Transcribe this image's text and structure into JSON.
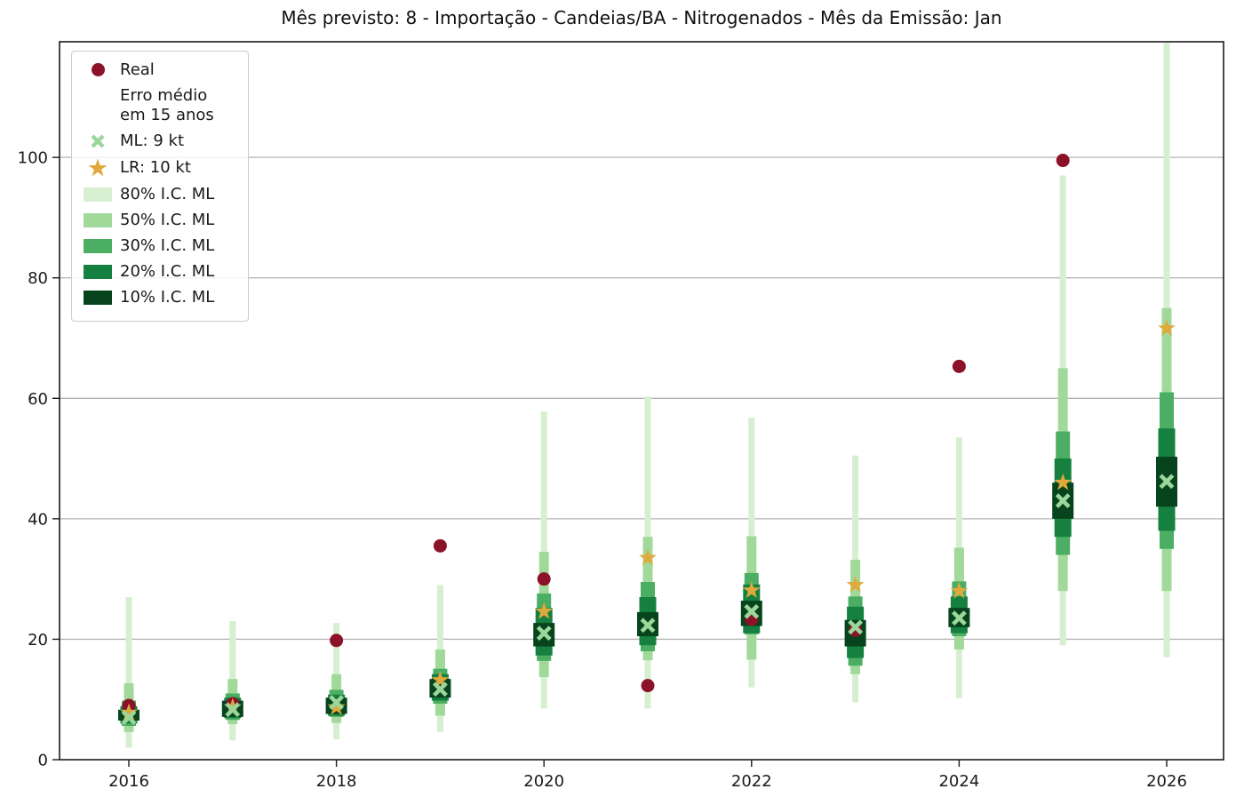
{
  "title": "Mês previsto: 8 - Importação - Candeias/BA - Nitrogenados - Mês da Emissão: Jan",
  "colors": {
    "real": "#8b1228",
    "ml_x": "#9bd69b",
    "lr_star": "#dfa93c",
    "ci80": "#d7efd1",
    "ci50": "#a1d99b",
    "ci30": "#4bae62",
    "ci20": "#15803f",
    "ci10": "#07441e",
    "grid": "#b3b3b3",
    "spine": "#1a1a1a",
    "text": "#1a1a1a"
  },
  "legend": {
    "items": [
      {
        "id": "real",
        "handle": "dot",
        "lines": [
          "Real"
        ]
      },
      {
        "id": "erro-medio",
        "handle": "none",
        "lines": [
          "Erro médio",
          "em 15 anos"
        ]
      },
      {
        "id": "ml",
        "handle": "x",
        "lines": [
          "ML: 9 kt"
        ]
      },
      {
        "id": "lr",
        "handle": "star",
        "lines": [
          "LR: 10 kt"
        ]
      },
      {
        "id": "ci80",
        "handle": "patch",
        "color_key": "ci80",
        "lines": [
          "80% I.C. ML"
        ]
      },
      {
        "id": "ci50",
        "handle": "patch",
        "color_key": "ci50",
        "lines": [
          "50% I.C. ML"
        ]
      },
      {
        "id": "ci30",
        "handle": "patch",
        "color_key": "ci30",
        "lines": [
          "30% I.C. ML"
        ]
      },
      {
        "id": "ci20",
        "handle": "patch",
        "color_key": "ci20",
        "lines": [
          "20% I.C. ML"
        ]
      },
      {
        "id": "ci10",
        "handle": "patch",
        "color_key": "ci10",
        "lines": [
          "10% I.C. ML"
        ]
      }
    ]
  },
  "chart_data": {
    "type": "bar",
    "subtype": "nested-confidence-interval-bars-with-scatter",
    "title": "Mês previsto: 8 - Importação - Candeias/BA - Nitrogenados - Mês da Emissão: Jan",
    "xlabel": "",
    "ylabel": "",
    "unit": "kt",
    "x": [
      2016,
      2017,
      2018,
      2019,
      2020,
      2021,
      2022,
      2023,
      2024,
      2025,
      2026
    ],
    "xticks": [
      2016,
      2018,
      2020,
      2022,
      2024,
      2026
    ],
    "yticks": [
      0,
      20,
      40,
      60,
      80,
      100
    ],
    "ylim": [
      0,
      119.2
    ],
    "grid": "horizontal",
    "legend_position": "upper-left",
    "series": [
      {
        "name": "Real",
        "kind": "points",
        "marker": "circle",
        "color_key": "real",
        "values": [
          9.0,
          9.3,
          19.8,
          35.5,
          30.0,
          12.3,
          23.3,
          21.5,
          65.3,
          99.5,
          null
        ]
      },
      {
        "name": "ML",
        "kind": "points",
        "marker": "x",
        "color_key": "ml_x",
        "values": [
          7.0,
          8.3,
          9.5,
          11.7,
          21.0,
          22.3,
          24.6,
          22.0,
          23.5,
          43.0,
          46.2
        ]
      },
      {
        "name": "LR",
        "kind": "points",
        "marker": "star",
        "color_key": "lr_star",
        "values": [
          7.8,
          8.7,
          8.7,
          13.2,
          24.6,
          33.5,
          28.1,
          29.0,
          28.0,
          46.0,
          71.6
        ]
      },
      {
        "name": "80% I.C. ML",
        "kind": "interval",
        "color_key": "ci80",
        "low": [
          2.0,
          3.2,
          3.4,
          4.6,
          8.5,
          8.5,
          12.0,
          9.5,
          10.2,
          19.0,
          17.0
        ],
        "high": [
          27.0,
          23.0,
          22.7,
          29.0,
          57.8,
          60.3,
          56.8,
          50.5,
          53.5,
          97.0,
          119.0
        ]
      },
      {
        "name": "50% I.C. ML",
        "kind": "interval",
        "color_key": "ci50",
        "low": [
          4.6,
          5.9,
          6.1,
          7.3,
          13.7,
          16.5,
          16.6,
          14.2,
          18.3,
          28.0,
          28.0
        ],
        "high": [
          12.7,
          13.4,
          14.2,
          18.3,
          34.5,
          37.0,
          37.1,
          33.2,
          35.2,
          65.0,
          75.0
        ]
      },
      {
        "name": "30% I.C. ML",
        "kind": "interval",
        "color_key": "ci30",
        "low": [
          5.6,
          6.6,
          7.1,
          9.3,
          16.4,
          18.0,
          20.8,
          15.6,
          20.5,
          34.0,
          35.0
        ],
        "high": [
          9.8,
          11.0,
          11.6,
          15.1,
          27.6,
          29.5,
          31.0,
          27.1,
          29.6,
          54.5,
          61.0
        ]
      },
      {
        "name": "20% I.C. ML",
        "kind": "interval",
        "color_key": "ci20",
        "low": [
          6.0,
          6.9,
          7.3,
          9.8,
          17.3,
          19.0,
          21.0,
          16.9,
          21.0,
          37.0,
          38.0
        ],
        "high": [
          8.9,
          10.3,
          10.8,
          14.2,
          25.2,
          27.0,
          29.1,
          25.4,
          27.1,
          50.0,
          55.0
        ]
      },
      {
        "name": "10% I.C. ML",
        "kind": "interval",
        "color_key": "ci10",
        "low": [
          6.5,
          7.1,
          7.6,
          10.3,
          18.8,
          20.5,
          22.2,
          18.8,
          22.0,
          40.0,
          42.0
        ],
        "high": [
          8.3,
          9.8,
          10.3,
          13.4,
          22.7,
          24.5,
          26.4,
          23.2,
          25.2,
          46.0,
          50.3
        ]
      }
    ]
  }
}
